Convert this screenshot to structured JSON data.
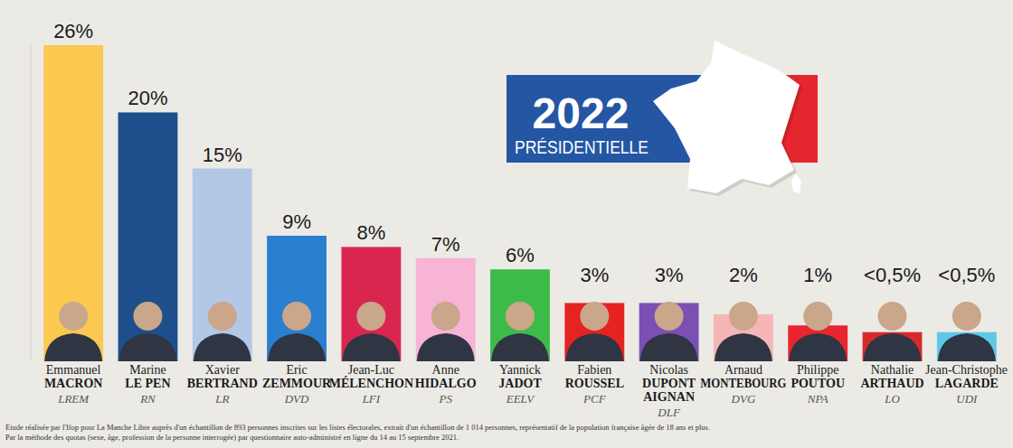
{
  "chart_data": {
    "type": "bar",
    "categories": [
      "Emmanuel MACRON",
      "Marine LE PEN",
      "Xavier BERTRAND",
      "Eric ZEMMOUR",
      "Jean-Luc MÉLENCHON",
      "Anne HIDALGO",
      "Yannick JADOT",
      "Fabien ROUSSEL",
      "Nicolas DUPONT AIGNAN",
      "Arnaud MONTEBOURG",
      "Philippe POUTOU",
      "Nathalie ARTHAUD",
      "Jean-Christophe LAGARDE"
    ],
    "parties": [
      "LREM",
      "RN",
      "LR",
      "DVD",
      "LFI",
      "PS",
      "EELV",
      "PCF",
      "DLF",
      "DVG",
      "NPA",
      "LO",
      "UDI"
    ],
    "values": [
      26,
      20,
      15,
      9,
      8,
      7,
      6,
      3,
      3,
      2,
      1,
      0.4,
      0.4
    ],
    "value_labels": [
      "26%",
      "20%",
      "15%",
      "9%",
      "8%",
      "7%",
      "6%",
      "3%",
      "3%",
      "2%",
      "1%",
      "<0,5%",
      "<0,5%"
    ],
    "colors": [
      "#fcc850",
      "#1f4e8c",
      "#b3c7e6",
      "#2a7fd0",
      "#d9264f",
      "#f7b4d4",
      "#3dbb4a",
      "#e52321",
      "#7b4fb3",
      "#f6b6b6",
      "#e8252e",
      "#d62a2a",
      "#5fc8e8"
    ],
    "ylim": [
      -2.2,
      26
    ],
    "grid": false,
    "data_labels": true,
    "tick_labels": false,
    "annotations": [
      "2022",
      "PRÉSIDENTIELLE"
    ],
    "source": [
      "Etude réalisée par l'Ifop pour La Manche Libre auprès d'un échantillon de 893 personnes inscrites sur les listes électorales, extrait d'un échantillon de 1 014 personnes, représentatif de la population française âgée de 18 ans et plus.",
      "Par la méthode des quotas (sexe, âge, profession de la personne interrogée) par questionnaire auto-administré en ligne du 14 au 15 septembre 2021."
    ]
  }
}
